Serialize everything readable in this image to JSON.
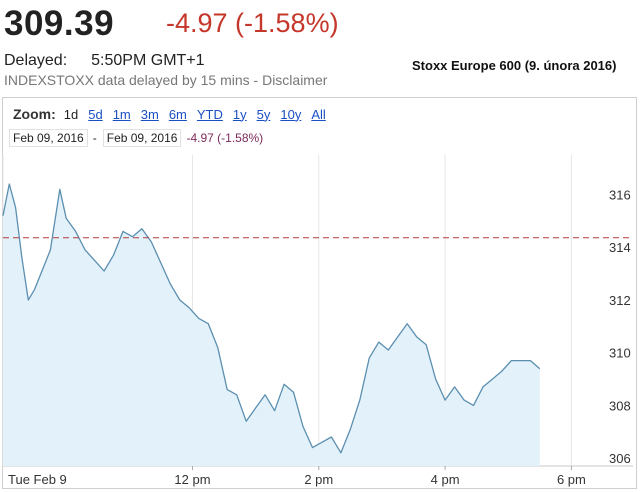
{
  "header": {
    "price": "309.39",
    "change": "-4.97 (-1.58%)",
    "delayed_label": "Delayed:",
    "delayed_time": "5:50PM GMT+1",
    "source": "INDEXSTOXX data delayed by 15 mins - Disclaimer",
    "caption": "Stoxx Europe 600 (9. února 2016)"
  },
  "zoom": {
    "label": "Zoom:",
    "options": [
      "1d",
      "5d",
      "1m",
      "3m",
      "6m",
      "YTD",
      "1y",
      "5y",
      "10y",
      "All"
    ],
    "active": "1d"
  },
  "range": {
    "start": "Feb 09, 2016",
    "separator": "-",
    "end": "Feb 09, 2016",
    "change": "-4.97 (-1.58%)"
  },
  "colors": {
    "line": "#5b8fb0",
    "fill": "#e3f1fa",
    "prev_close": "#b33c3c",
    "change": "#c5372a"
  },
  "chart_data": {
    "type": "area",
    "x_ticks": [
      "Tue Feb 9",
      "12 pm",
      "2 pm",
      "4 pm",
      "6 pm"
    ],
    "y_ticks": [
      306,
      308,
      310,
      312,
      314,
      316
    ],
    "ylim": [
      305.7,
      317.5
    ],
    "xlim": [
      9.0,
      18.5
    ],
    "previous_close": 314.36,
    "series": [
      {
        "x": [
          9.0,
          9.1,
          9.2,
          9.3,
          9.4,
          9.5,
          9.6,
          9.75,
          9.9,
          10.0,
          10.15,
          10.3,
          10.45,
          10.6,
          10.75,
          10.9,
          11.05,
          11.2,
          11.35,
          11.5,
          11.65,
          11.8,
          11.95,
          12.1,
          12.25,
          12.4,
          12.55,
          12.7,
          12.85,
          13.0,
          13.15,
          13.3,
          13.45,
          13.6,
          13.75,
          13.9,
          14.05,
          14.2,
          14.35,
          14.5,
          14.65,
          14.8,
          14.95,
          15.1,
          15.25,
          15.4,
          15.55,
          15.7,
          15.85,
          16.0,
          16.15,
          16.3,
          16.45,
          16.6,
          16.75,
          16.9,
          17.05,
          17.2,
          17.35,
          17.5
        ],
        "y": [
          315.2,
          316.4,
          315.5,
          313.6,
          312.0,
          312.4,
          313.0,
          313.9,
          316.2,
          315.1,
          314.6,
          313.9,
          313.5,
          313.1,
          313.7,
          314.6,
          314.4,
          314.7,
          314.2,
          313.4,
          312.6,
          312.0,
          311.7,
          311.3,
          311.1,
          310.2,
          308.6,
          308.4,
          307.4,
          307.9,
          308.4,
          307.8,
          308.8,
          308.5,
          307.2,
          306.4,
          306.6,
          306.8,
          306.2,
          307.1,
          308.2,
          309.8,
          310.4,
          310.1,
          310.6,
          311.1,
          310.6,
          310.3,
          309.0,
          308.2,
          308.7,
          308.2,
          308.0,
          308.7,
          309.0,
          309.3,
          309.7,
          309.7,
          309.7,
          309.39
        ]
      }
    ]
  }
}
